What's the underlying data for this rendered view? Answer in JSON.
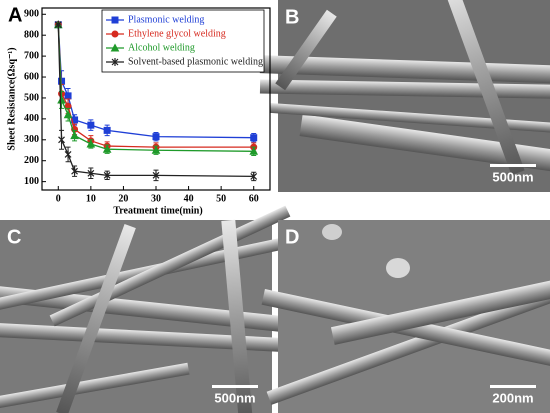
{
  "chart_data": {
    "type": "line",
    "panel_label": "A",
    "x_label": "Treatment time(min)",
    "y_label": "Sheet Resistance(Ωsq⁻¹)",
    "x": [
      0,
      1,
      3,
      5,
      10,
      15,
      30,
      60
    ],
    "xlim": [
      -5,
      65
    ],
    "xticks": [
      0,
      10,
      20,
      30,
      40,
      50,
      60
    ],
    "ylim": [
      60,
      930
    ],
    "yticks": [
      100,
      200,
      300,
      400,
      500,
      600,
      700,
      800,
      900
    ],
    "legend": "upper right",
    "series": [
      {
        "name": "Plasmonic welding",
        "color": "#1f3fd6",
        "marker": "square",
        "values": [
          850,
          580,
          510,
          395,
          370,
          345,
          315,
          310
        ],
        "errors": [
          0,
          50,
          35,
          25,
          25,
          25,
          20,
          20
        ]
      },
      {
        "name": "Ethylene glycol welding",
        "color": "#d62a1f",
        "marker": "circle",
        "values": [
          850,
          520,
          460,
          350,
          295,
          270,
          265,
          265
        ],
        "errors": [
          0,
          45,
          35,
          25,
          25,
          20,
          20,
          20
        ]
      },
      {
        "name": "Alcohol welding",
        "color": "#1f9a2a",
        "marker": "triangle",
        "values": [
          850,
          490,
          420,
          320,
          280,
          255,
          250,
          245
        ],
        "errors": [
          0,
          40,
          30,
          25,
          20,
          20,
          20,
          20
        ]
      },
      {
        "name": "Solvent-based plasmonic welding",
        "color": "#222222",
        "marker": "star",
        "values": [
          850,
          300,
          230,
          150,
          140,
          130,
          130,
          125
        ],
        "errors": [
          0,
          45,
          35,
          25,
          25,
          20,
          25,
          20
        ]
      }
    ]
  },
  "panels": [
    {
      "label": "B",
      "scale_bar": "500nm"
    },
    {
      "label": "C",
      "scale_bar": "500nm"
    },
    {
      "label": "D",
      "scale_bar": "200nm"
    }
  ]
}
